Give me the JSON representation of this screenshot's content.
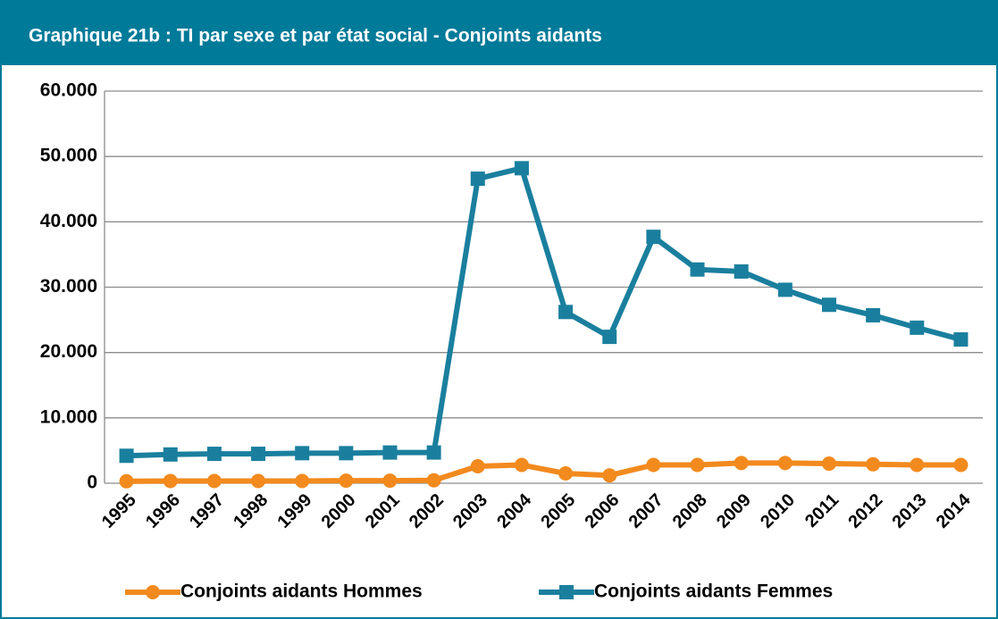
{
  "chart_data": {
    "type": "line",
    "title": "Graphique 21b : TI par  sexe et par état social -  Conjoints aidants",
    "categories": [
      "1995",
      "1996",
      "1997",
      "1998",
      "1999",
      "2000",
      "2001",
      "2002",
      "2003",
      "2004",
      "2005",
      "2006",
      "2007",
      "2008",
      "2009",
      "2010",
      "2011",
      "2012",
      "2013",
      "2014"
    ],
    "series": [
      {
        "name": "Conjoints aidants Hommes",
        "color": "#f28a1e",
        "marker": "circle",
        "values": [
          300,
          350,
          350,
          350,
          350,
          400,
          400,
          450,
          2600,
          2800,
          1500,
          1200,
          2800,
          2800,
          3100,
          3100,
          3000,
          2900,
          2800,
          2800
        ]
      },
      {
        "name": "Conjoints aidants Femmes",
        "color": "#1a7f9e",
        "marker": "square",
        "values": [
          4200,
          4400,
          4500,
          4500,
          4600,
          4600,
          4700,
          4700,
          46600,
          48200,
          26200,
          22400,
          37700,
          32700,
          32400,
          29600,
          27300,
          25700,
          23800,
          22000
        ]
      }
    ],
    "ylim": [
      0,
      60000
    ],
    "yticks": [
      0,
      {
        "value": 10000,
        "label": "10.000"
      },
      {
        "value": 20000,
        "label": "20.000"
      },
      {
        "value": 30000,
        "label": "30.000"
      },
      {
        "value": 40000,
        "label": "40.000"
      },
      {
        "value": 50000,
        "label": "50.000"
      },
      {
        "value": 60000,
        "label": "60.000"
      }
    ],
    "grid": true,
    "legend": "bottom"
  }
}
